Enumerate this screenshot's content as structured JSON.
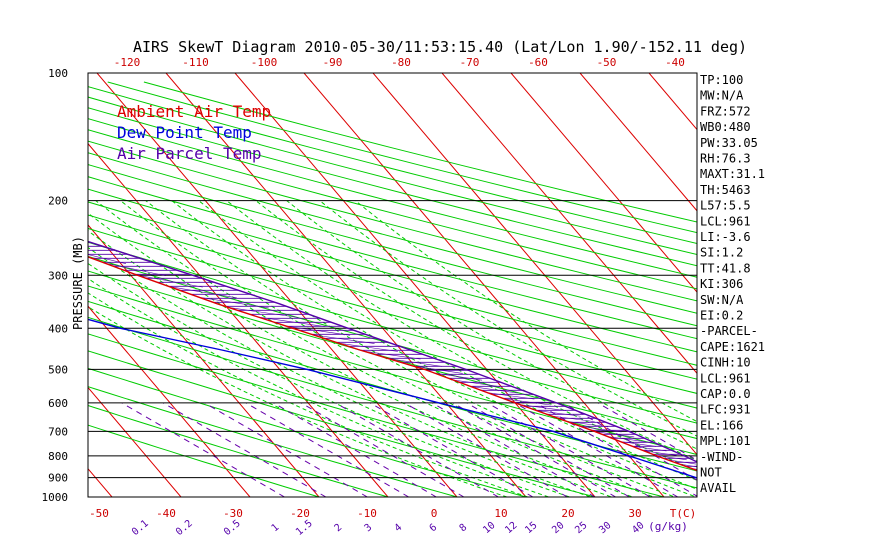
{
  "chart_data": {
    "type": "line",
    "title": "AIRS SkewT Diagram 2010-05-30/11:53:15.40 (Lat/Lon 1.90/-152.11 deg)",
    "ylabel": "PRESSURE (MB)",
    "xlabel_bottom": "T(C)",
    "mixing_label": "(g/kg)",
    "y_scale": "log",
    "ylim": [
      1000,
      100
    ],
    "bottom_ticks": [
      "-50",
      "-40",
      "-30",
      "-20",
      "-10",
      "0",
      "10",
      "20",
      "30"
    ],
    "top_ticks": [
      "-120",
      "-110",
      "-100",
      "-90",
      "-80",
      "-70",
      "-60",
      "-50",
      "-40"
    ],
    "pressure_ticks": [
      "100",
      "200",
      "300",
      "400",
      "500",
      "600",
      "700",
      "800",
      "900",
      "1000"
    ],
    "mixing_ticks": [
      "0.1",
      "0.2",
      "0.5",
      "1",
      "1.5",
      "2",
      "3",
      "4",
      "6",
      "8",
      "10",
      "12",
      "15",
      "20",
      "25",
      "30",
      "40"
    ],
    "legend": [
      {
        "label": "Ambient Air Temp",
        "color": "#dd0000"
      },
      {
        "label": "Dew Point Temp",
        "color": "#0000dd"
      },
      {
        "label": "Air Parcel Temp",
        "color": "#5500aa"
      }
    ],
    "series": [
      {
        "name": "Ambient Air Temp",
        "color": "#dd0000",
        "points": [
          [
            100,
            -83
          ],
          [
            120,
            -80
          ],
          [
            150,
            -75
          ],
          [
            170,
            -70
          ],
          [
            200,
            -61
          ],
          [
            250,
            -48
          ],
          [
            300,
            -39
          ],
          [
            350,
            -31
          ],
          [
            400,
            -23
          ],
          [
            450,
            -16
          ],
          [
            500,
            -9
          ],
          [
            600,
            0
          ],
          [
            700,
            8
          ],
          [
            800,
            14
          ],
          [
            900,
            20
          ],
          [
            950,
            23
          ],
          [
            1000,
            26
          ]
        ]
      },
      {
        "name": "Dew Point Temp",
        "color": "#0000dd",
        "points": [
          [
            100,
            -93
          ],
          [
            130,
            -90
          ],
          [
            160,
            -86
          ],
          [
            200,
            -80
          ],
          [
            250,
            -74
          ],
          [
            300,
            -68
          ],
          [
            350,
            -58
          ],
          [
            400,
            -48
          ],
          [
            450,
            -36
          ],
          [
            500,
            -26
          ],
          [
            600,
            -11
          ],
          [
            700,
            2
          ],
          [
            800,
            10
          ],
          [
            900,
            17
          ],
          [
            950,
            20
          ],
          [
            1000,
            23
          ]
        ]
      },
      {
        "name": "Air Parcel Temp",
        "color": "#5500aa",
        "points": [
          [
            100,
            -105
          ],
          [
            120,
            -96
          ],
          [
            150,
            -82
          ],
          [
            170,
            -72
          ],
          [
            200,
            -58
          ],
          [
            250,
            -42
          ],
          [
            300,
            -31
          ],
          [
            350,
            -22
          ],
          [
            400,
            -15
          ],
          [
            500,
            -3
          ],
          [
            600,
            6
          ],
          [
            700,
            13
          ],
          [
            800,
            18
          ],
          [
            900,
            22
          ],
          [
            961,
            24
          ],
          [
            1000,
            26
          ]
        ]
      }
    ],
    "indices": [
      "TP:100",
      "MW:N/A",
      "FRZ:572",
      "WB0:480",
      "PW:33.05",
      "RH:76.3",
      "MAXT:31.1",
      "TH:5463",
      "L57:5.5",
      "LCL:961",
      "LI:-3.6",
      "SI:1.2",
      "TT:41.8",
      "KI:306",
      "SW:N/A",
      "EI:0.2",
      "-PARCEL-",
      "CAPE:1621",
      "CINH:10",
      "LCL:961",
      "CAP:0.0",
      "LFC:931",
      "EL:166",
      "MPL:101",
      "-WIND-",
      "NOT",
      "AVAIL"
    ]
  },
  "colors": {
    "isotherm": "#dd0000",
    "dry_adiabat": "#00cc00",
    "moist_adiabat": "#00cc00",
    "mixing_ratio": "#6600aa",
    "isobar": "#000000",
    "cape_hatch": "#5500aa"
  }
}
